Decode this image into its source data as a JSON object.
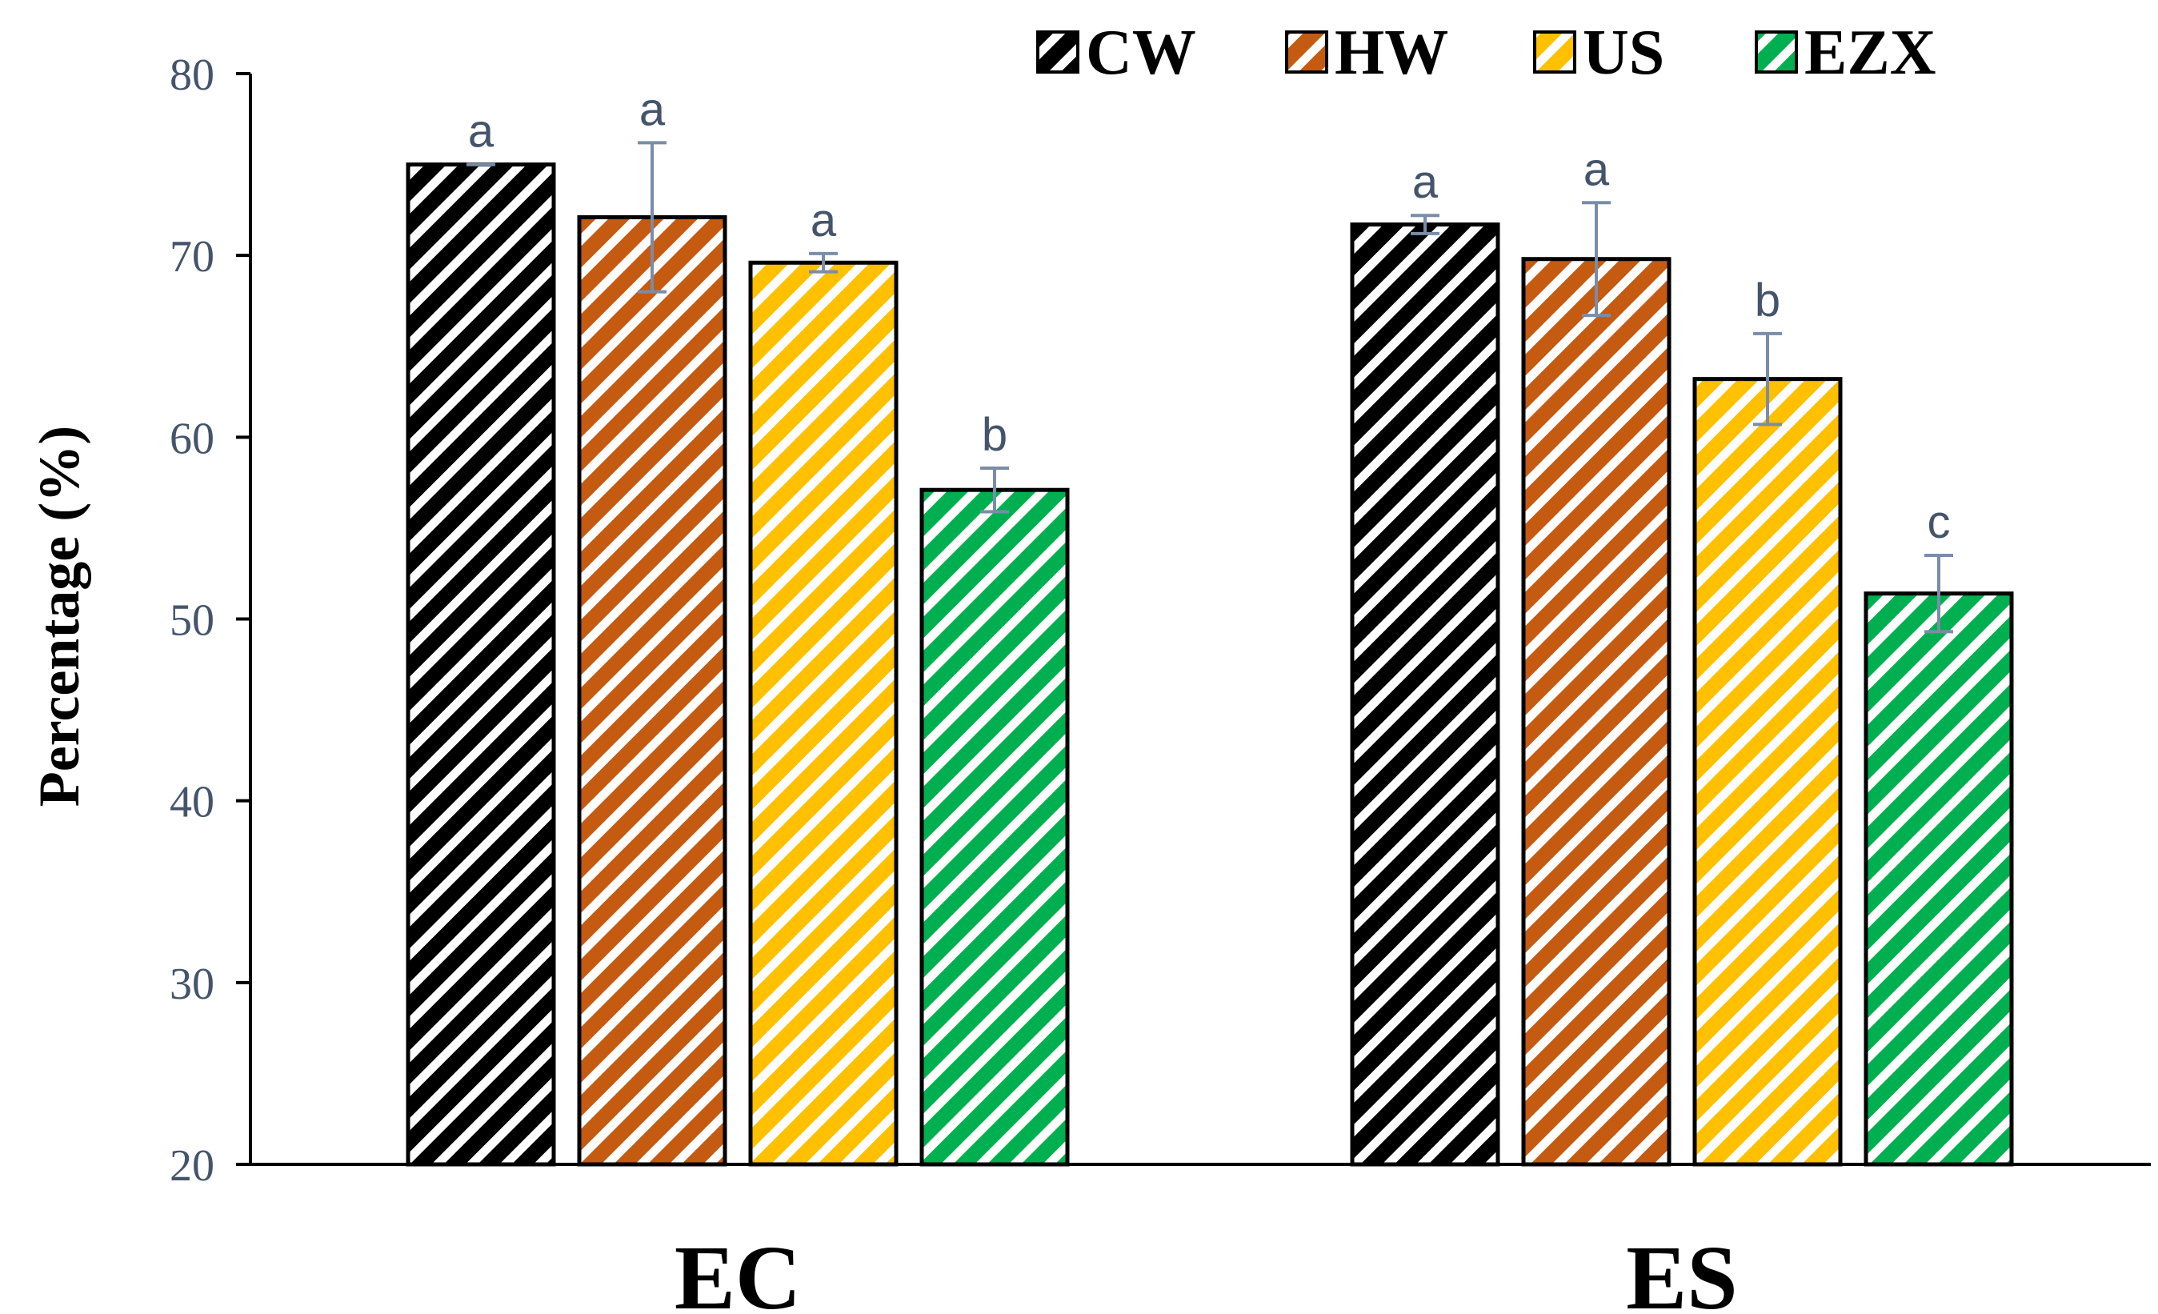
{
  "chart_data": {
    "type": "bar",
    "title": "",
    "xlabel": "",
    "ylabel": "Percentage (%)",
    "ylim": [
      20,
      80
    ],
    "yticks": [
      20,
      30,
      40,
      50,
      60,
      70,
      80
    ],
    "grid": false,
    "legend_position": "top-right",
    "categories": [
      "EC",
      "ES"
    ],
    "series": [
      {
        "name": "CW",
        "color": "#000000",
        "values": [
          75.0,
          71.7
        ],
        "errors": [
          0.0,
          0.5
        ],
        "significance": [
          "a",
          "a"
        ]
      },
      {
        "name": "HW",
        "color": "#C55A11",
        "values": [
          72.1,
          69.8
        ],
        "errors": [
          4.1,
          3.1
        ],
        "significance": [
          "a",
          "a"
        ]
      },
      {
        "name": "US",
        "color": "#FFC000",
        "values": [
          69.6,
          63.2
        ],
        "errors": [
          0.5,
          2.5
        ],
        "significance": [
          "a",
          "b"
        ]
      },
      {
        "name": "EZX",
        "color": "#00B050",
        "values": [
          57.1,
          51.4
        ],
        "errors": [
          1.2,
          2.1
        ],
        "significance": [
          "b",
          "c"
        ]
      }
    ]
  }
}
